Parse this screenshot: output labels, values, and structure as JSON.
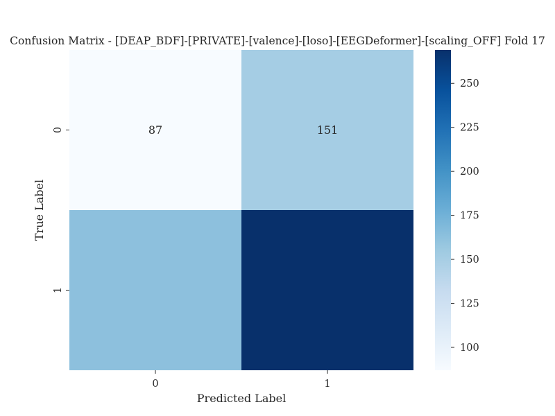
{
  "chart_data": {
    "type": "heatmap",
    "title": "Confusion Matrix - [DEAP_BDF]-[PRIVATE]-[valence]-[loso]-[EEGDeformer]-[scaling_OFF] Fold 17",
    "xlabel": "Predicted Label",
    "ylabel": "True Label",
    "x_ticks": [
      "0",
      "1"
    ],
    "y_ticks": [
      "0",
      "1"
    ],
    "values": [
      [
        87,
        151
      ],
      [
        163,
        269
      ]
    ],
    "annotations": [
      [
        "87",
        "151"
      ],
      [
        "",
        ""
      ]
    ],
    "colormap": "Blues",
    "colorbar": {
      "range": [
        87,
        269
      ],
      "ticks": [
        "100",
        "125",
        "150",
        "175",
        "200",
        "225",
        "250"
      ]
    }
  }
}
